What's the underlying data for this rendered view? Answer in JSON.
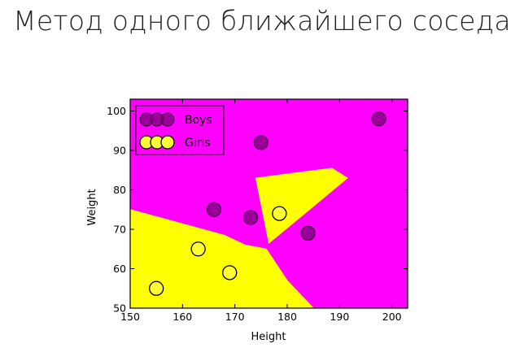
{
  "slide": {
    "title": "Метод одного ближайшего соседа"
  },
  "chart_data": {
    "type": "scatter",
    "xlabel": "Height",
    "ylabel": "Weight",
    "xlim": [
      150,
      203
    ],
    "ylim": [
      50,
      103
    ],
    "x_ticks": [
      150,
      160,
      170,
      180,
      190,
      200
    ],
    "y_ticks": [
      50,
      60,
      70,
      80,
      90,
      100
    ],
    "grid": false,
    "legend_placement": "top-left",
    "background_regions": [
      {
        "class": "Boys",
        "color": "#ff00ff"
      },
      {
        "class": "Girls",
        "color": "#ffff00",
        "polygons": [
          [
            [
              150,
              75
            ],
            [
              168,
              68.5
            ],
            [
              172,
              66
            ],
            [
              176,
              65
            ],
            [
              180,
              57
            ],
            [
              185,
              50
            ],
            [
              150,
              50
            ]
          ],
          [
            [
              174,
              83
            ],
            [
              188.5,
              85.5
            ],
            [
              191.5,
              83
            ],
            [
              176.5,
              66.5
            ]
          ]
        ]
      }
    ],
    "series": [
      {
        "name": "Boys",
        "color": "#7a007a",
        "edge_color": "#4a004a",
        "x": [
          166,
          173,
          175,
          184,
          197.5
        ],
        "y": [
          75,
          73,
          92,
          69,
          98
        ]
      },
      {
        "name": "Girls",
        "color": "#ffff33",
        "edge_color": "#000000",
        "x": [
          155,
          163,
          169,
          178.5
        ],
        "y": [
          55,
          65,
          59,
          74
        ]
      }
    ]
  }
}
